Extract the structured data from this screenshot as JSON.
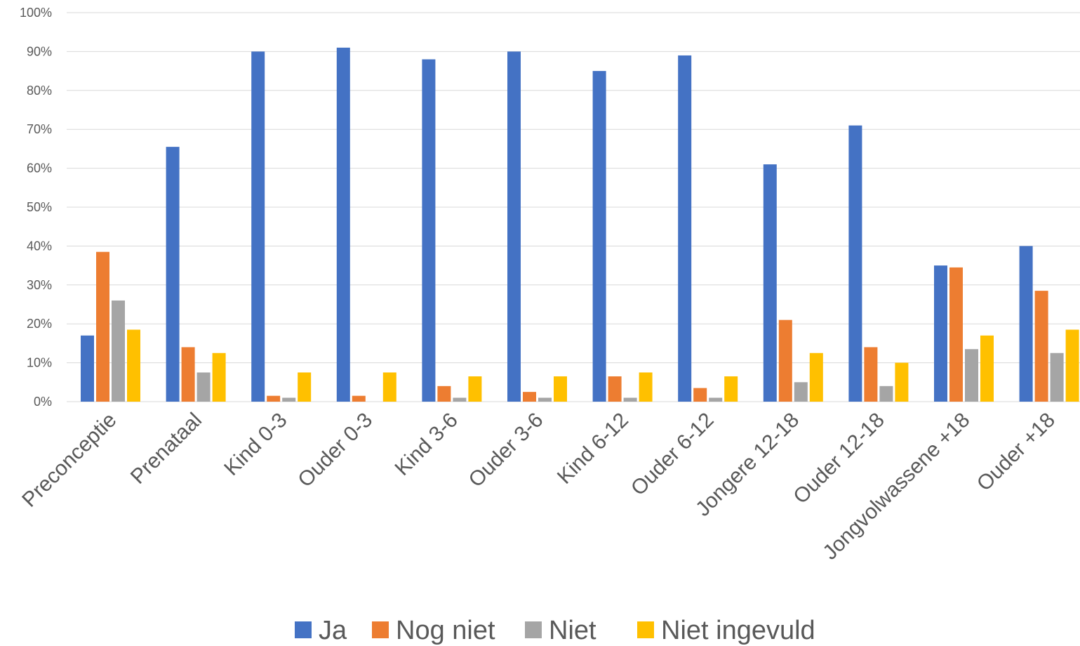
{
  "chart_data": {
    "type": "bar",
    "title": "",
    "xlabel": "",
    "ylabel": "",
    "ylim": [
      0,
      100
    ],
    "yticks": [
      "0%",
      "10%",
      "20%",
      "30%",
      "40%",
      "50%",
      "60%",
      "70%",
      "80%",
      "90%",
      "100%"
    ],
    "grid": true,
    "legend_position": "bottom",
    "categories": [
      "Preconceptie",
      "Prenataal",
      "Kind 0-3",
      "Ouder 0-3",
      "Kind 3-6",
      "Ouder 3-6",
      "Kind 6-12",
      "Ouder 6-12",
      "Jongere 12-18",
      "Ouder 12-18",
      "Jongvolwassene +18",
      "Ouder +18"
    ],
    "series": [
      {
        "name": "Ja",
        "color": "#4472C4",
        "values": [
          17,
          65.5,
          90,
          91,
          88,
          90,
          85,
          89,
          61,
          71,
          35,
          40
        ]
      },
      {
        "name": "Nog niet",
        "color": "#ED7D31",
        "values": [
          38.5,
          14,
          1.5,
          1.5,
          4,
          2.5,
          6.5,
          3.5,
          21,
          14,
          34.5,
          28.5
        ]
      },
      {
        "name": "Niet",
        "color": "#A5A5A5",
        "values": [
          26,
          7.5,
          1,
          0,
          1,
          1,
          1,
          1,
          5,
          4,
          13.5,
          12.5
        ]
      },
      {
        "name": "Niet ingevuld",
        "color": "#FFC000",
        "values": [
          18.5,
          12.5,
          7.5,
          7.5,
          6.5,
          6.5,
          7.5,
          6.5,
          12.5,
          10,
          17,
          18.5
        ]
      }
    ]
  }
}
